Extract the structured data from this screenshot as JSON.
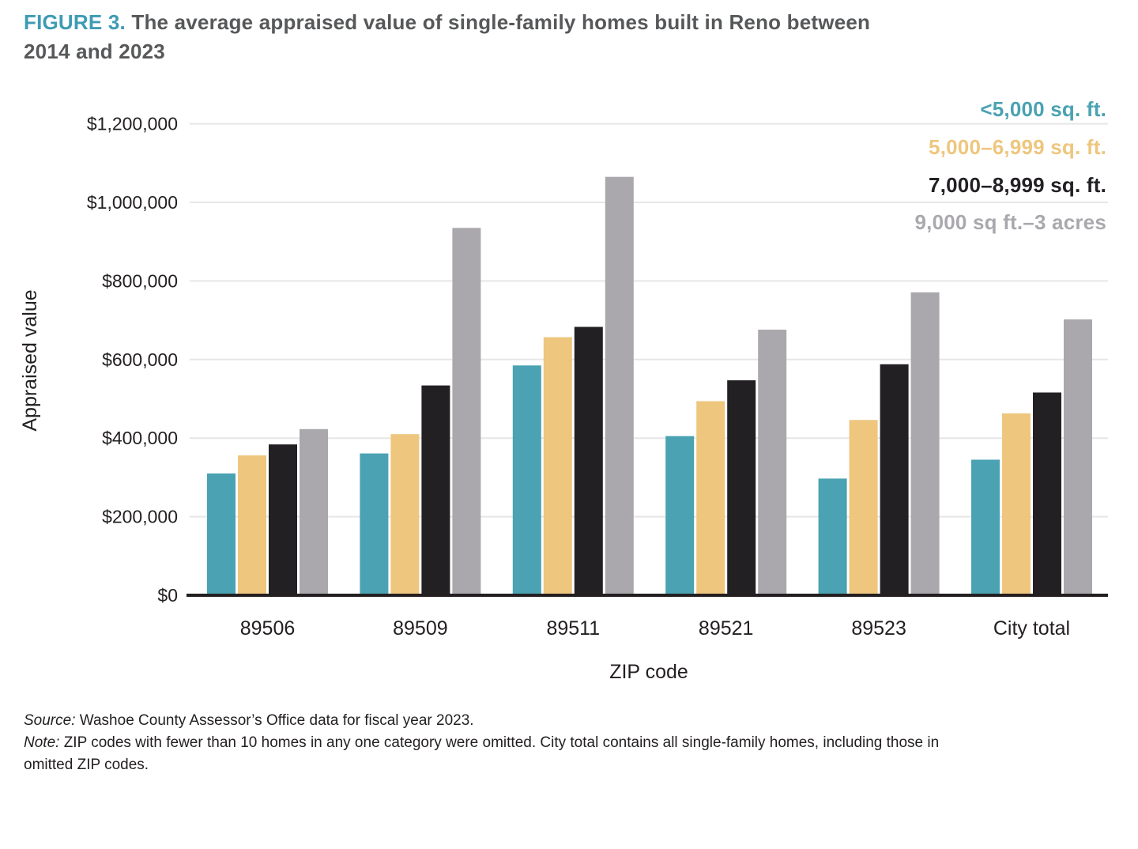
{
  "figure": {
    "label": "FIGURE 3.",
    "title": " The average appraised value of single-family homes built in Reno between\n2014 and 2023"
  },
  "colors": {
    "accent_teal": "#3e9bb4",
    "title_gray": "#57585a",
    "text": "#231f20",
    "axis": "#231f20",
    "gridline": "#e6e6e6",
    "series_teal": "#4aa2b2",
    "series_yellow": "#eec67e",
    "series_black": "#232024",
    "series_gray": "#aaa8ad"
  },
  "chart_data": {
    "type": "bar",
    "title": "The average appraised value of single-family homes built in Reno between 2014 and 2023",
    "xlabel": "ZIP code",
    "ylabel": "Appraised value",
    "categories": [
      "89506",
      "89509",
      "89511",
      "89521",
      "89523",
      "City total"
    ],
    "series": [
      {
        "name": "<5,000 sq. ft.",
        "color": "#4aa2b2",
        "values": [
          310000,
          361000,
          585000,
          405000,
          297000,
          345000
        ]
      },
      {
        "name": "5,000–6,999 sq. ft.",
        "color": "#eec67e",
        "values": [
          356000,
          410000,
          657000,
          494000,
          446000,
          463000
        ]
      },
      {
        "name": "7,000–8,999 sq. ft.",
        "color": "#232024",
        "values": [
          384000,
          534000,
          683000,
          547000,
          588000,
          516000
        ]
      },
      {
        "name": "9,000 sq ft.–3 acres",
        "color": "#aaa8ad",
        "values": [
          423000,
          935000,
          1065000,
          676000,
          771000,
          702000
        ]
      }
    ],
    "ylim": [
      0,
      1200000
    ],
    "ytick_interval": 200000,
    "ytick_labels": [
      "$0",
      "$200,000",
      "$400,000",
      "$600,000",
      "$800,000",
      "$1,000,000",
      "$1,200,000"
    ],
    "grid": true,
    "legend_position": "top-right"
  },
  "footer": {
    "source_label": "Source:",
    "source_text": " Washoe County Assessor’s Office data for fiscal year 2023.",
    "note_label": "Note:",
    "note_text": " ZIP codes with fewer than 10 homes in any one category were omitted. City total contains all single-family homes, including those in\nomitted ZIP codes."
  }
}
